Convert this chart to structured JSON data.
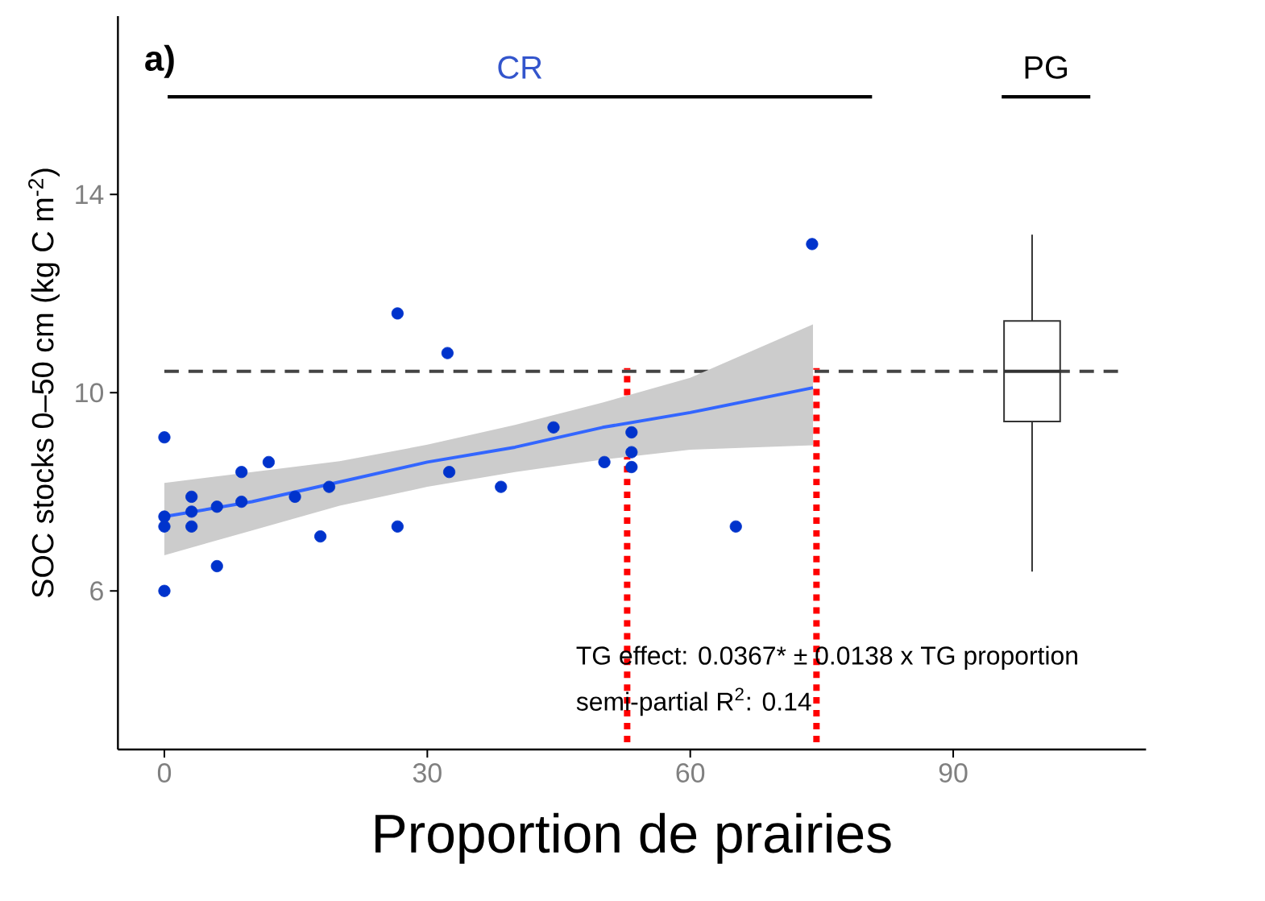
{
  "chart_data": {
    "type": "scatter",
    "title": "a)",
    "xlabel": "Proportion de prairies",
    "ylabel": "SOC stocks 0–50 cm (kg C m$^{-2}$)",
    "xlim": [
      -5.3,
      112
    ],
    "ylim": [
      2.8,
      17.6
    ],
    "xticks": [
      0,
      30,
      60,
      90
    ],
    "yticks": [
      6,
      10,
      14
    ],
    "series": [
      {
        "marker": "circle",
        "color": "#0033cc",
        "x": [
          0,
          0,
          0,
          0,
          3.1,
          3.1,
          3.1,
          6,
          6,
          8.8,
          8.8,
          11.9,
          14.9,
          17.8,
          18.8,
          26.6,
          26.6,
          32.3,
          32.5,
          38.4,
          44.4,
          50.2,
          53.3,
          53.3,
          53.3,
          65.2,
          73.9
        ],
        "values": [
          9.1,
          7.5,
          7.3,
          6.0,
          7.9,
          7.6,
          7.3,
          7.7,
          6.5,
          8.4,
          7.8,
          8.6,
          7.9,
          7.1,
          8.1,
          11.6,
          7.3,
          10.8,
          8.4,
          8.1,
          9.3,
          8.6,
          9.2,
          8.8,
          8.5,
          7.3,
          13.0
        ]
      },
      {
        "type": "line",
        "marker": "none",
        "color": "#3366ff",
        "x": [
          0,
          10,
          20,
          30,
          40,
          50,
          60,
          74
        ],
        "values": [
          7.5,
          7.8,
          8.2,
          8.6,
          8.9,
          9.3,
          9.6,
          10.1
        ],
        "lower": [
          6.72,
          7.22,
          7.72,
          8.1,
          8.4,
          8.65,
          8.85,
          8.94
        ],
        "upper": [
          8.18,
          8.4,
          8.62,
          8.95,
          9.35,
          9.8,
          10.3,
          11.38
        ]
      },
      {
        "type": "box",
        "color": "#333333",
        "x": [
          99
        ],
        "boxes": [
          {
            "low": 6.39,
            "q1": 9.42,
            "median": 10.43,
            "q3": 11.45,
            "high": 13.19
          }
        ]
      }
    ],
    "ref_lines": [
      {
        "axis": "y",
        "value": 10.43,
        "color": "#444444",
        "line_style": "dashed"
      },
      {
        "axis": "x",
        "value": 52.8,
        "color": "#ff0000",
        "line_style": "dotted"
      },
      {
        "axis": "x",
        "value": 74.4,
        "color": "#ff0000",
        "line_style": "dotted"
      }
    ],
    "annotations": [
      "TG effect: 0.0367* ± 0.0138 x TG proportion",
      "semi-partial R$^{2}$: 0.14",
      "CR",
      "PG"
    ]
  }
}
